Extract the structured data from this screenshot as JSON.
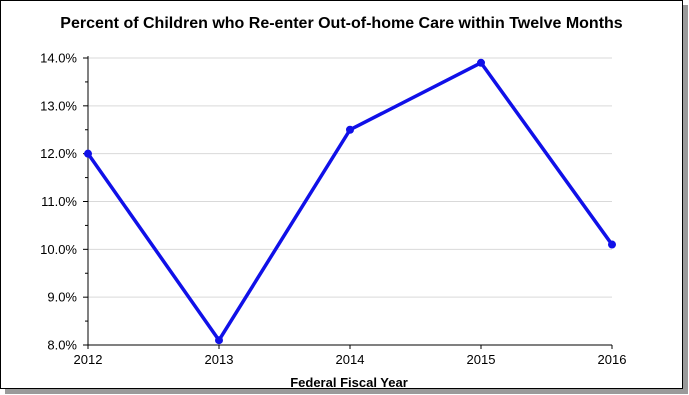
{
  "chart_data": {
    "type": "line",
    "title": "Percent of Children who Re-enter Out-of-home Care within Twelve Months",
    "xlabel": "Federal Fiscal Year",
    "ylabel": "",
    "categories": [
      "2012",
      "2013",
      "2014",
      "2015",
      "2016"
    ],
    "series": [
      {
        "values": [
          12.0,
          8.1,
          12.5,
          13.9,
          10.1
        ]
      }
    ],
    "ylim": [
      8.0,
      14.0
    ],
    "yticks": [
      8.0,
      9.0,
      10.0,
      11.0,
      12.0,
      13.0,
      14.0
    ],
    "ytick_labels": [
      "8.0%",
      "9.0%",
      "10.0%",
      "11.0%",
      "12.0%",
      "13.0%",
      "14.0%"
    ],
    "grid": true,
    "legend": "none",
    "colors": {
      "line": "#1010e8",
      "grid": "#d9d9d9",
      "axis": "#000000"
    }
  }
}
